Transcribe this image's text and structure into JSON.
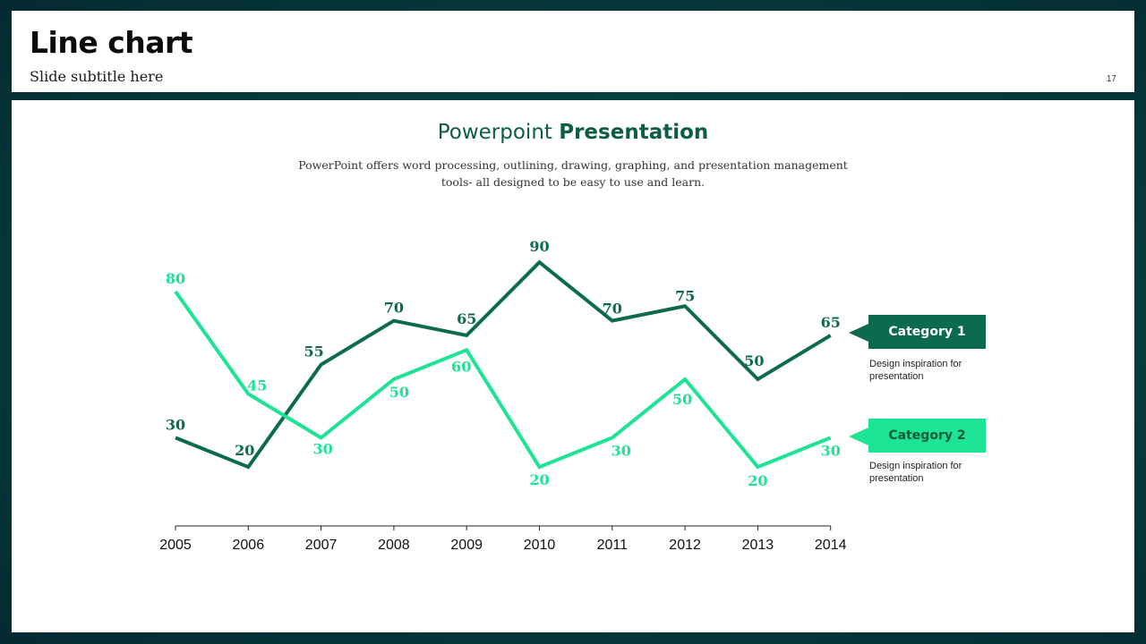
{
  "header": {
    "title": "Line chart",
    "subtitle": "Slide subtitle here",
    "page_number": "17"
  },
  "presentation": {
    "heading_light": "Powerpoint",
    "heading_bold": "Presentation",
    "description": "PowerPoint offers word processing, outlining, drawing, graphing, and presentation management tools- all designed to be easy to use and learn."
  },
  "legend": [
    {
      "label": "Category 1",
      "description": "Design inspiration for presentation",
      "color": "#0c6b4e"
    },
    {
      "label": "Category 2",
      "description": "Design inspiration for presentation",
      "color": "#1de394"
    }
  ],
  "chart_data": {
    "type": "line",
    "x": [
      "2005",
      "2006",
      "2007",
      "2008",
      "2009",
      "2010",
      "2011",
      "2012",
      "2013",
      "2014"
    ],
    "series": [
      {
        "name": "Category 1",
        "color": "#0c6b4e",
        "values": [
          30,
          20,
          55,
          70,
          65,
          90,
          70,
          75,
          50,
          65
        ]
      },
      {
        "name": "Category 2",
        "color": "#1de394",
        "values": [
          80,
          45,
          30,
          50,
          60,
          20,
          30,
          50,
          20,
          30
        ]
      }
    ],
    "data_labels": true,
    "y_axis_visible": false,
    "grid": false
  }
}
